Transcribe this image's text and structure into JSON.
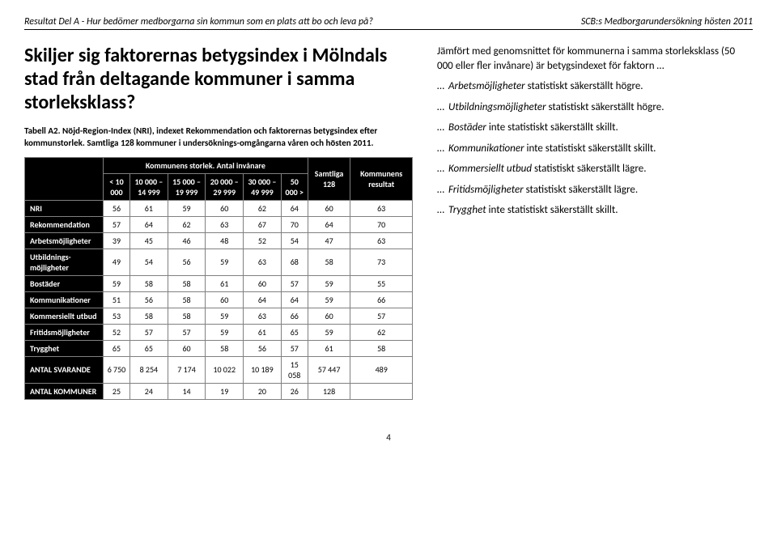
{
  "header": {
    "left": "Resultat Del A - Hur bedömer medborgarna sin kommun som en plats att bo och leva på?",
    "right": "SCB:s Medborgarundersökning hösten 2011"
  },
  "title": "Skiljer sig faktorernas betygsindex i Mölndals stad från deltagande kommuner i samma storleksklass?",
  "caption": "Tabell A2. Nöjd-Region-Index (NRI), indexet Rekommendation och faktorernas betygsindex efter kommunstorlek. Samtliga 128 kommuner i undersöknings-omgångarna våren och hösten 2011.",
  "table": {
    "group_header": "Kommunens storlek. Antal invånare",
    "columns": [
      "< 10 000",
      "10 000 – 14 999",
      "15 000 – 19 999",
      "20 000 – 29 999",
      "30 000 – 49 999",
      "50 000 >",
      "Samtliga 128",
      "Kommunens resultat"
    ],
    "rows": [
      {
        "label": "NRI",
        "values": [
          56,
          61,
          59,
          60,
          62,
          64,
          60,
          63
        ]
      },
      {
        "label": "Rekommendation",
        "values": [
          57,
          64,
          62,
          63,
          67,
          70,
          64,
          70
        ]
      },
      {
        "label": "Arbetsmöjligheter",
        "values": [
          39,
          45,
          46,
          48,
          52,
          54,
          47,
          63
        ]
      },
      {
        "label": "Utbildnings-möjligheter",
        "values": [
          49,
          54,
          56,
          59,
          63,
          68,
          58,
          73
        ]
      },
      {
        "label": "Bostäder",
        "values": [
          59,
          58,
          58,
          61,
          60,
          57,
          59,
          55
        ]
      },
      {
        "label": "Kommunikationer",
        "values": [
          51,
          56,
          58,
          60,
          64,
          64,
          59,
          66
        ]
      },
      {
        "label": "Kommersiellt utbud",
        "values": [
          53,
          58,
          58,
          59,
          63,
          66,
          60,
          57
        ]
      },
      {
        "label": "Fritidsmöjligheter",
        "values": [
          52,
          57,
          57,
          59,
          61,
          65,
          59,
          62
        ]
      },
      {
        "label": "Trygghet",
        "values": [
          65,
          65,
          60,
          58,
          56,
          57,
          61,
          58
        ]
      },
      {
        "label": "ANTAL SVARANDE",
        "values": [
          "6 750",
          "8 254",
          "7 174",
          "10 022",
          "10 189",
          "15 058",
          "57 447",
          "489"
        ]
      },
      {
        "label": "ANTAL KOMMUNER",
        "values": [
          25,
          24,
          14,
          19,
          20,
          26,
          128,
          ""
        ]
      }
    ]
  },
  "right": {
    "intro": "Jämfört med genomsnittet för kommunerna i samma storleksklass (50 000 eller fler invånare) är betygsindexet för faktorn …",
    "bullets": [
      {
        "term": "Arbetsmöjligheter",
        "tail": " statistiskt säkerställt högre."
      },
      {
        "term": "Utbildningsmöjligheter",
        "tail": " statistiskt säkerställt högre."
      },
      {
        "term": "Bostäder",
        "tail": " inte statistiskt säkerställt skillt."
      },
      {
        "term": "Kommunikationer",
        "tail": " inte statistiskt säkerställt skillt."
      },
      {
        "term": "Kommersiellt utbud",
        "tail": " statistiskt säkerställt lägre."
      },
      {
        "term": "Fritidsmöjligheter",
        "tail": " statistiskt säkerställt lägre."
      },
      {
        "term": "Trygghet",
        "tail": " inte statistiskt säkerställt skillt."
      }
    ]
  },
  "page_number": "4"
}
